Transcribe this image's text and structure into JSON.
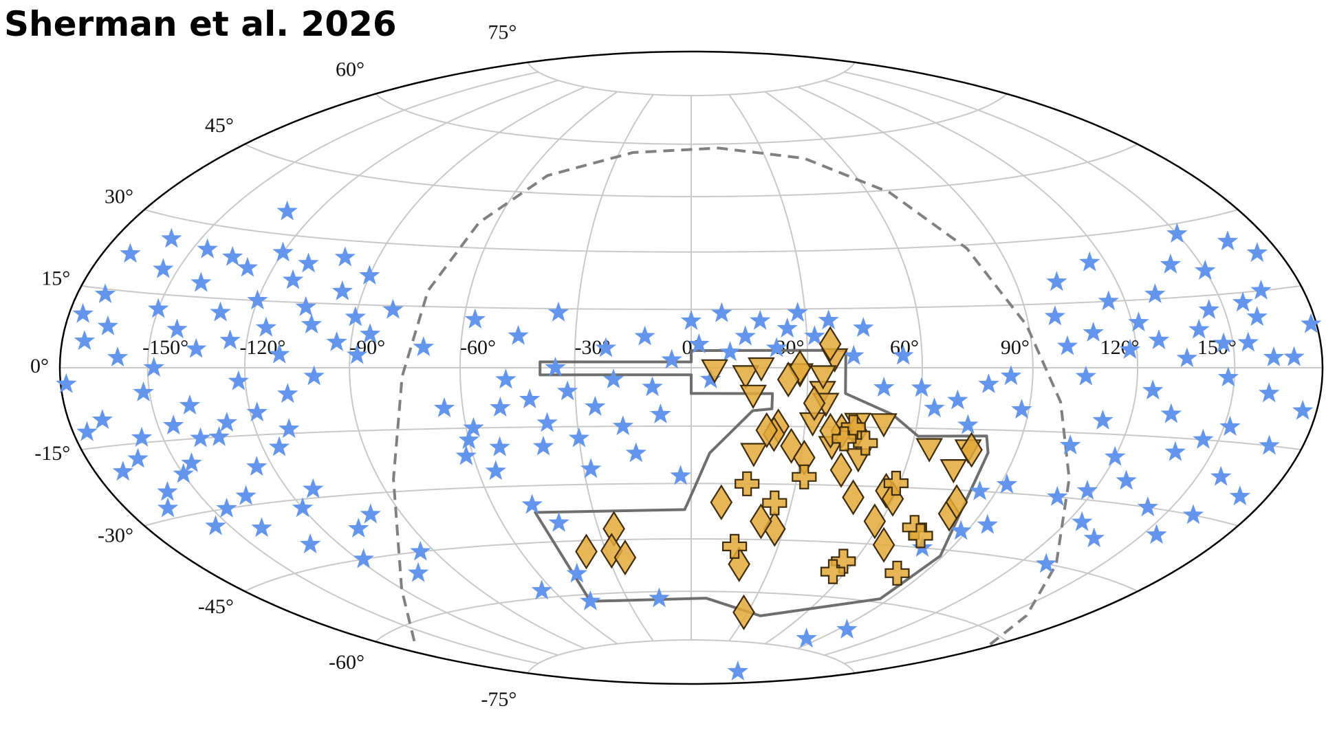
{
  "chart_data": {
    "type": "scatter",
    "projection": "hammer",
    "title": "Sherman et al. 2026",
    "xlim": [
      -180,
      180
    ],
    "ylim": [
      -90,
      90
    ],
    "grid": true,
    "xticks": [
      {
        "value": -150,
        "label": "-150°"
      },
      {
        "value": -120,
        "label": "-120°"
      },
      {
        "value": -90,
        "label": "-90°"
      },
      {
        "value": -60,
        "label": "-60°"
      },
      {
        "value": -30,
        "label": "-30°"
      },
      {
        "value": 0,
        "label": "0°"
      },
      {
        "value": 30,
        "label": "30°"
      },
      {
        "value": 60,
        "label": "60°"
      },
      {
        "value": 90,
        "label": "90°"
      },
      {
        "value": 120,
        "label": "120°"
      },
      {
        "value": 150,
        "label": "150°"
      }
    ],
    "yticks": [
      {
        "value": -75,
        "label": "-75°"
      },
      {
        "value": -60,
        "label": "-60°"
      },
      {
        "value": -45,
        "label": "-45°"
      },
      {
        "value": -30,
        "label": "-30°"
      },
      {
        "value": -15,
        "label": "-15°"
      },
      {
        "value": 0,
        "label": "0°"
      },
      {
        "value": 15,
        "label": "15°"
      },
      {
        "value": 30,
        "label": "30°"
      },
      {
        "value": 45,
        "label": "45°"
      },
      {
        "value": 60,
        "label": "60°"
      },
      {
        "value": 75,
        "label": "75°"
      }
    ],
    "outlines": [
      {
        "linestyle": "solid",
        "closed": true,
        "color": "#6e6e6e",
        "x": [
          -39,
          0,
          0,
          40,
          40,
          53,
          61,
          80,
          82,
          89,
          86,
          38,
          7,
          -48,
          -48,
          -2,
          1,
          5,
          16,
          21,
          21,
          0,
          0,
          -39
        ],
        "y": [
          1.5,
          1.5,
          4.4,
          4.4,
          -6.5,
          -11.7,
          -17,
          -16.5,
          -20.6,
          -46.6,
          -59,
          -66.8,
          -62,
          -62,
          -37,
          -37,
          -31,
          -22,
          -11,
          -10.5,
          -6.6,
          -6.6,
          -1.8,
          -1.8
        ]
      },
      {
        "linestyle": "dashed",
        "closed": false,
        "color": "#808080",
        "x": [
          -164.8,
          -120.8,
          -85.7,
          -75.6,
          -71.7,
          -65.5,
          -52.6,
          -24.4,
          11.8,
          45.4,
          67.5,
          80.4,
          89.4,
          98.6,
          109.8,
          133.8,
          158.9,
          179
        ],
        "y": [
          -62.9,
          -53.1,
          -26.9,
          -2.1,
          18.9,
          36.5,
          49.8,
          57.3,
          58.8,
          55,
          44.4,
          29.2,
          10.1,
          -8,
          -25.6,
          -44.7,
          -55.4,
          -61.9
        ]
      }
    ],
    "series": [
      {
        "marker": "star",
        "color": "#6495ed",
        "x": [
          -175,
          -172,
          -178,
          -170,
          -165,
          -168,
          -160,
          -162,
          -155,
          -150,
          -152,
          -148,
          -145,
          -142,
          -140,
          -138,
          -135,
          -132,
          -130,
          -128,
          -125,
          -122,
          -120,
          -118,
          -115,
          -112,
          -110,
          -108,
          -105,
          -102,
          -100,
          -96,
          -94,
          -90,
          -88,
          -85,
          -80,
          -160,
          -150,
          -145,
          -140,
          -135,
          -130,
          -125,
          -120,
          -118,
          -112,
          -108,
          -105,
          -100,
          -95,
          -170,
          -165,
          -155,
          -145,
          -138,
          -128,
          -115,
          -110,
          -175,
          -157,
          -145,
          -135,
          -120,
          -110,
          -100,
          -90,
          -170,
          -160,
          -130,
          -60,
          -62,
          -58,
          -55,
          -52,
          -50,
          -48,
          -45,
          -42,
          -40,
          -38,
          -35,
          -32,
          -30,
          -28,
          -25,
          -22,
          -20,
          -18,
          -15,
          -12,
          -10,
          -8,
          -5,
          -3,
          0,
          2,
          5,
          8,
          10,
          14,
          18,
          22,
          25,
          28,
          32,
          36,
          42,
          45,
          50,
          55,
          60,
          64,
          70,
          74,
          78,
          84,
          88,
          -48,
          -42,
          -65,
          -70,
          -57,
          -35,
          85,
          92,
          95,
          80,
          88,
          94,
          82,
          95,
          -15,
          -65,
          -48,
          -45,
          98,
          102,
          105,
          108,
          112,
          115,
          118,
          120,
          122,
          125,
          128,
          130,
          132,
          135,
          138,
          140,
          142,
          145,
          148,
          150,
          152,
          155,
          158,
          160,
          162,
          165,
          168,
          170,
          172,
          175,
          178,
          145,
          155,
          135,
          118,
          125,
          105,
          110,
          160,
          170,
          165,
          150,
          140,
          130,
          115,
          100,
          163,
          157,
          147,
          127
        ],
        "y": [
          10,
          5,
          -3,
          14,
          8,
          -10,
          2,
          -18,
          20,
          12,
          -5,
          0,
          -12,
          8,
          18,
          -8,
          4,
          -15,
          12,
          22,
          6,
          -3,
          15,
          -10,
          9,
          20,
          3,
          -6,
          14,
          10,
          -2,
          18,
          6,
          12,
          3,
          8,
          14,
          -25,
          -22,
          -30,
          -35,
          -28,
          -40,
          -22,
          -32,
          -45,
          -28,
          -38,
          -50,
          -35,
          -45,
          -20,
          -28,
          -33,
          -20,
          -15,
          -12,
          -18,
          -14,
          -12,
          -14,
          25,
          24,
          26,
          24,
          26,
          22,
          22,
          26,
          35,
          -18,
          -22,
          -15,
          -26,
          -20,
          -10,
          -3,
          8,
          -8,
          -20,
          -14,
          0,
          -6,
          -18,
          -26,
          -10,
          5,
          -3,
          -15,
          -22,
          8,
          -5,
          -12,
          2,
          -28,
          12,
          6,
          -3,
          14,
          4,
          8,
          12,
          5,
          10,
          14,
          8,
          12,
          3,
          10,
          -5,
          3,
          -5,
          -10,
          -8,
          -14,
          -4,
          -2,
          -10,
          -35,
          -40,
          -10,
          5,
          12,
          14,
          -30,
          -28,
          -38,
          -45,
          -40,
          -84,
          -72,
          -68,
          -62,
          -58,
          -62,
          -54,
          12,
          20,
          -2,
          8,
          -12,
          15,
          4,
          -20,
          10,
          -5,
          -25,
          16,
          -10,
          2,
          -18,
          8,
          -30,
          12,
          -2,
          20,
          -12,
          5,
          -22,
          10,
          -5,
          15,
          -15,
          2,
          22,
          -8,
          8,
          -15,
          -35,
          -38,
          -28,
          -35,
          -18,
          -30,
          -30,
          -25,
          25,
          28,
          22,
          -45,
          24,
          5,
          2,
          13,
          5,
          6
        ]
      },
      {
        "marker": "triangle_down",
        "color": "#e2a93a",
        "edgecolor": "#3d2b0a",
        "x": [
          6,
          14,
          16,
          18,
          28,
          34,
          35,
          37,
          44,
          51,
          17,
          38,
          46,
          65,
          74,
          76,
          32,
          34
        ],
        "y": [
          -0.5,
          -2,
          -7,
          0,
          -1.5,
          -6,
          -9,
          2.3,
          -14,
          -14,
          -22,
          -20,
          -23,
          -20,
          -25,
          -20,
          -14,
          -2
        ]
      },
      {
        "marker": "diamond",
        "color": "#e2a93a",
        "edgecolor": "#3d2b0a",
        "x": [
          36,
          28,
          25,
          23,
          22,
          27,
          31,
          42,
          48,
          57,
          58,
          66,
          80,
          80,
          77,
          9,
          27,
          22,
          18,
          28,
          -25,
          -28,
          -24,
          -37,
          44,
          40,
          32,
          60,
          37,
          20
        ],
        "y": [
          6,
          0,
          -3,
          -15,
          -17,
          -20,
          -23,
          -26,
          -33,
          -31,
          -39,
          -45,
          -36,
          -33,
          -20,
          -35,
          -42,
          -40,
          -52,
          -66,
          -42,
          -48,
          -50,
          -48,
          -16,
          -16,
          -9,
          -33,
          -16,
          -16
        ]
      },
      {
        "marker": "plus",
        "color": "#e2a93a",
        "edgecolor": "#3d2b0a",
        "x": [
          16,
          25,
          32,
          47,
          59,
          56,
          55,
          15,
          72,
          76,
          80,
          43,
          41
        ],
        "y": [
          -30,
          -35,
          -28,
          -19,
          -29,
          -50,
          -53,
          -47,
          -40,
          -42,
          -52,
          -15,
          -18
        ]
      }
    ]
  }
}
